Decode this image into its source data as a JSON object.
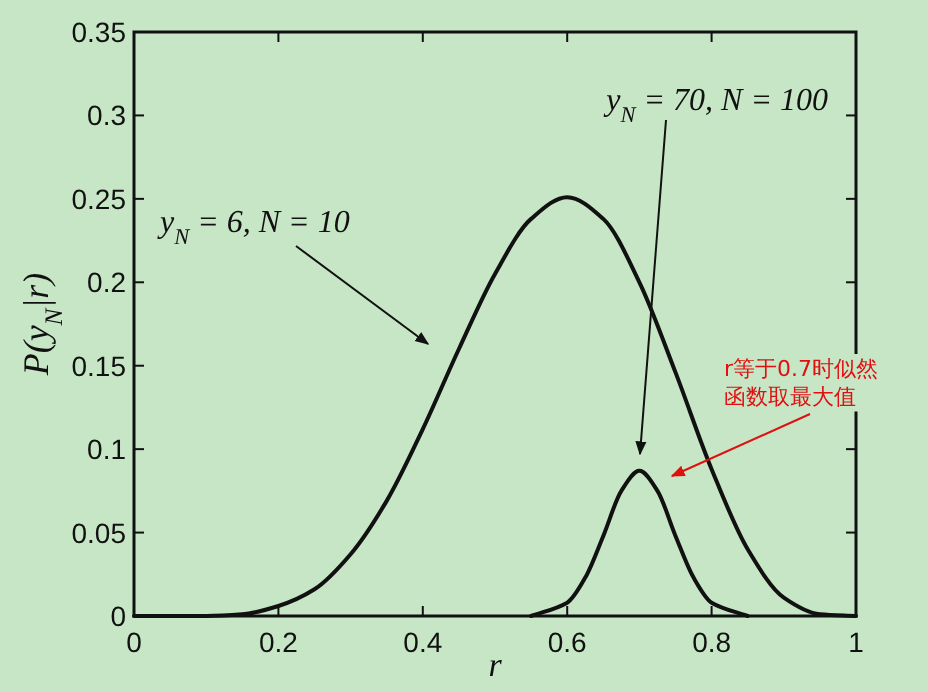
{
  "chart_data": {
    "type": "line",
    "xlabel": "r",
    "ylabel": "P(y$_{N}$|r)",
    "xlim": [
      0,
      1
    ],
    "ylim": [
      0,
      0.35
    ],
    "xticks": [
      0,
      0.2,
      0.4,
      0.6,
      0.8,
      1
    ],
    "yticks": [
      0,
      0.05,
      0.1,
      0.15,
      0.2,
      0.25,
      0.3,
      0.35
    ],
    "series": [
      {
        "color": "#111111",
        "x": [
          0,
          0.05,
          0.1,
          0.15,
          0.2,
          0.25,
          0.3,
          0.35,
          0.4,
          0.45,
          0.5,
          0.55,
          0.6,
          0.65,
          0.7,
          0.75,
          0.8,
          0.85,
          0.9,
          0.95,
          1
        ],
        "values": [
          0,
          0,
          0,
          0.001,
          0.006,
          0.016,
          0.037,
          0.069,
          0.112,
          0.16,
          0.205,
          0.238,
          0.251,
          0.238,
          0.2,
          0.146,
          0.088,
          0.04,
          0.011,
          0.001,
          0
        ]
      },
      {
        "color": "#111111",
        "x": [
          0.55,
          0.6,
          0.625,
          0.65,
          0.675,
          0.7,
          0.725,
          0.75,
          0.775,
          0.8,
          0.85
        ],
        "values": [
          0,
          0.008,
          0.023,
          0.048,
          0.075,
          0.087,
          0.075,
          0.048,
          0.023,
          0.008,
          0
        ]
      }
    ],
    "annotations": [
      "y$_{N}$ = 6,  N = 10",
      "y$_{N}$ = 70,  N = 100",
      "r等于0.7时似然函数取最大值"
    ]
  }
}
